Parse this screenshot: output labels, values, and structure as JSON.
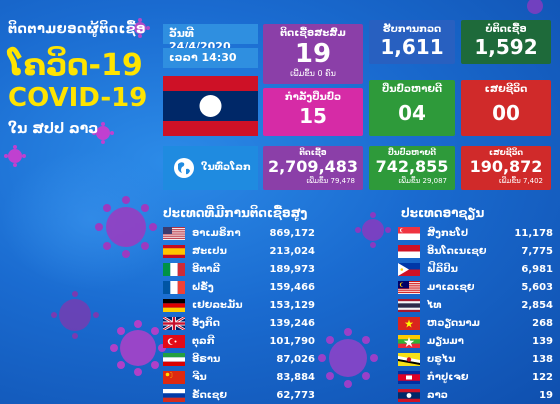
{
  "header": {
    "line1": "ຕິດຕາມຍອດຜູ້ຕິດເຊື້ອ",
    "title_lao": "ໂຄວິດ-19",
    "title_en": "COVID-19",
    "country": "ໃນ ສປປ ລາວ"
  },
  "date": "ວັນທີ 24/4/2020",
  "time": "ເວລາ 14:30",
  "laos": {
    "total_label": "ຕິດເຊື້ອສະສົມ",
    "total_value": "19",
    "total_sub": "ເພີ່ມຂຶ້ນ 0 ຄົນ",
    "treat_label": "ກຳລັງປິ່ນປົວ",
    "treat_value": "15",
    "test_label": "ຮັບການກວດ",
    "test_value": "1,611",
    "neg_label": "ບໍ່ຕິດເຊື້ອ",
    "neg_value": "1,592",
    "rec_label": "ປິ່ນປົວຫາຍດີ",
    "rec_value": "04",
    "death_label": "ເສຍຊີວິດ",
    "death_value": "00"
  },
  "world": {
    "label": "ໃນທົ່ວໂລກ",
    "cases_label": "ຕິດເຊື້ອ",
    "cases_value": "2,709,483",
    "cases_sub": "ເພີ່ມຂຶ້ນ 79,478",
    "rec_label": "ປິ່ນປົວຫາຍດີ",
    "rec_value": "742,855",
    "rec_sub": "ເພີ່ມຂຶ້ນ 29,087",
    "death_label": "ເສຍຊີວິດ",
    "death_value": "190,872",
    "death_sub": "ເພີ່ມຂຶ້ນ 7,402"
  },
  "top_countries": {
    "title": "ປະເທດທີ່ມີການຕິດເຊື້ອສູງ",
    "rows": [
      {
        "name": "ອາເມຣິກາ",
        "value": "869,172",
        "flag": "us"
      },
      {
        "name": "ສະເປນ",
        "value": "213,024",
        "flag": "es"
      },
      {
        "name": "ອີຕາລີ",
        "value": "189,973",
        "flag": "it"
      },
      {
        "name": "ຝຣັ່ງ",
        "value": "159,466",
        "flag": "fr"
      },
      {
        "name": "ເຢຍລະມັນ",
        "value": "153,129",
        "flag": "de"
      },
      {
        "name": "ອັງກິດ",
        "value": "139,246",
        "flag": "gb"
      },
      {
        "name": "ຕຸລກີ",
        "value": "101,790",
        "flag": "tr"
      },
      {
        "name": "ອີຣານ",
        "value": "87,026",
        "flag": "ir"
      },
      {
        "name": "ຈີນ",
        "value": "83,884",
        "flag": "cn"
      },
      {
        "name": "ຣັດເຊຍ",
        "value": "62,773",
        "flag": "ru"
      }
    ]
  },
  "asean": {
    "title": "ປະເທດອາຊຽນ",
    "rows": [
      {
        "name": "ສິງກະໂປ",
        "value": "11,178",
        "flag": "sg"
      },
      {
        "name": "ອິນໂດເນເຊຍ",
        "value": "7,775",
        "flag": "id"
      },
      {
        "name": "ຟີລິປິນ",
        "value": "6,981",
        "flag": "ph"
      },
      {
        "name": "ມາເລເຊຍ",
        "value": "5,603",
        "flag": "my"
      },
      {
        "name": "ໄທ",
        "value": "2,854",
        "flag": "th"
      },
      {
        "name": "ຫວຽດນາມ",
        "value": "268",
        "flag": "vn"
      },
      {
        "name": "ມຽນມາ",
        "value": "139",
        "flag": "mm"
      },
      {
        "name": "ບຣູໄນ",
        "value": "138",
        "flag": "bn"
      },
      {
        "name": "ກຳປູເຈຍ",
        "value": "122",
        "flag": "kh"
      },
      {
        "name": "ລາວ",
        "value": "19",
        "flag": "la"
      }
    ]
  },
  "colors": {
    "background": "#1565c8",
    "accent_yellow": "#ffe400",
    "purple": "#8b3fa8",
    "magenta": "#d62ba6",
    "green": "#2e9a3a",
    "red": "#d02a2a",
    "dark_green": "#1e6a3a"
  }
}
